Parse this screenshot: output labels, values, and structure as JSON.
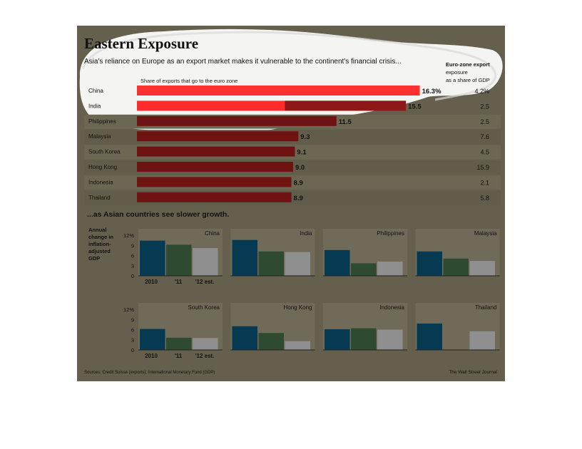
{
  "chart_data": [
    {
      "type": "bar",
      "title": "Eastern Exposure",
      "subtitle": "Asia's reliance on Europe as an export market makes it vulnerable to the continent's financial crisis...",
      "series_label": "Share of exports that go to the euro zone",
      "column_header": [
        "Euro-zone export",
        "exposure",
        "as a share of GDP"
      ],
      "categories": [
        "China",
        "India",
        "Philippines",
        "Malaysia",
        "South Korea",
        "Hong Kong",
        "Indonesia",
        "Thailand"
      ],
      "values": [
        16.3,
        15.5,
        11.5,
        9.3,
        9.1,
        9.0,
        8.9,
        8.9
      ],
      "value_labels": [
        "16.3%",
        "15.5",
        "11.5",
        "9.3",
        "9.1",
        "9.0",
        "8.9",
        "8.9"
      ],
      "gdp_exposure": [
        "4.2%",
        "2.5",
        "2.5",
        "7.6",
        "4.5",
        "15.9",
        "2.1",
        "5.8"
      ],
      "xlim": [
        0,
        18
      ]
    },
    {
      "type": "bar",
      "title": "...as Asian countries see slower growth.",
      "ylabel": "Annual change in inflation-adjusted GDP",
      "ylabel_lines": [
        "Annual",
        "change in",
        "inflation-",
        "adjusted",
        "GDP"
      ],
      "yticks": [
        "12%",
        "9",
        "6",
        "3",
        "0"
      ],
      "ylim": [
        0,
        12
      ],
      "categories": [
        "2010",
        "'11",
        "'12 est."
      ],
      "panels": [
        {
          "name": "China",
          "values": [
            10.4,
            9.2,
            8.2
          ]
        },
        {
          "name": "India",
          "values": [
            10.6,
            7.2,
            7.0
          ]
        },
        {
          "name": "Philippines",
          "values": [
            7.6,
            3.7,
            4.2
          ]
        },
        {
          "name": "Malaysia",
          "values": [
            7.2,
            5.1,
            4.4
          ]
        },
        {
          "name": "South Korea",
          "values": [
            6.2,
            3.6,
            3.5
          ]
        },
        {
          "name": "Hong Kong",
          "values": [
            7.0,
            5.0,
            2.6
          ]
        },
        {
          "name": "Indonesia",
          "values": [
            6.1,
            6.4,
            6.0
          ]
        },
        {
          "name": "Thailand",
          "values": [
            7.8,
            0.0,
            5.5
          ]
        }
      ],
      "colors": [
        "#063a52",
        "#2e4a31",
        "#8f8f8f"
      ]
    }
  ],
  "footer": {
    "source": "Sources: Credit Suisse (exports); International Monetary Fund (GDP)",
    "credit": "The Wall Street Journal"
  },
  "colors": {
    "background": "#65604d",
    "bar_dark": "#6e1212",
    "bar_highlight": "#ff2a2a",
    "panel_bg": "#706b58",
    "highlight_halo": "#ffffff"
  }
}
